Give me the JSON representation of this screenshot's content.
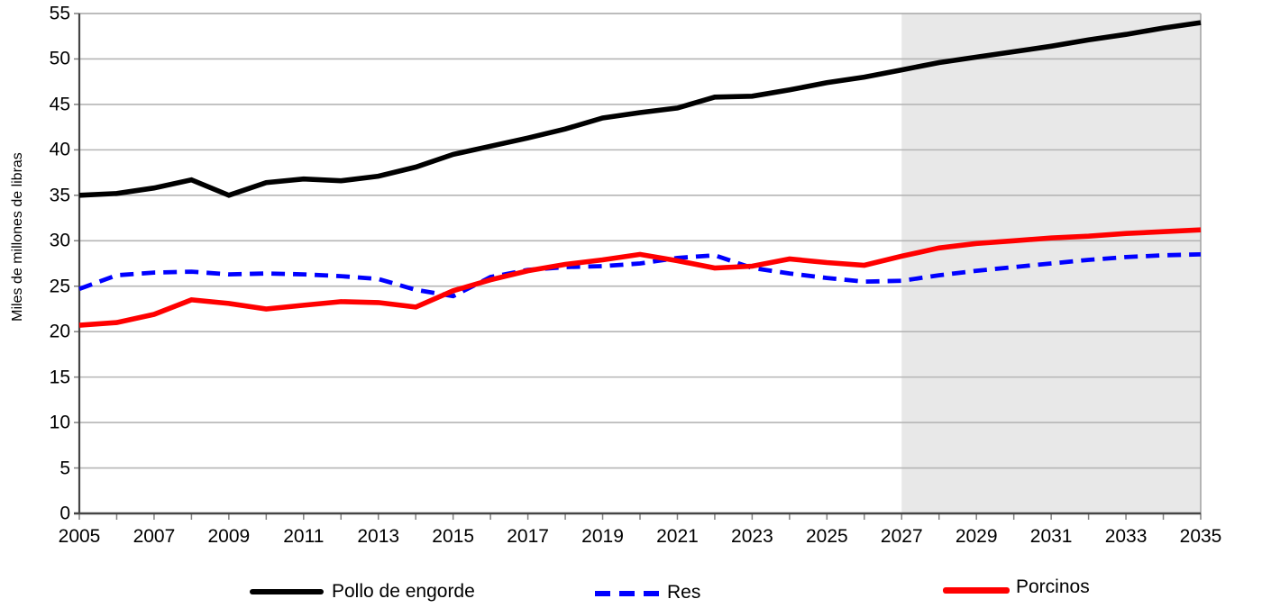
{
  "chart_data": {
    "type": "line",
    "title": "",
    "ylabel": "Miles de millones de libras",
    "xlabel": "",
    "ylim": [
      0,
      55
    ],
    "ytick_step": 5,
    "ytick_labels": [
      "0",
      "5",
      "10",
      "15",
      "20",
      "25",
      "30",
      "35",
      "40",
      "45",
      "50",
      "55"
    ],
    "x": [
      2005,
      2006,
      2007,
      2008,
      2009,
      2010,
      2011,
      2012,
      2013,
      2014,
      2015,
      2016,
      2017,
      2018,
      2019,
      2020,
      2021,
      2022,
      2023,
      2024,
      2025,
      2026,
      2027,
      2028,
      2029,
      2030,
      2031,
      2032,
      2033,
      2034,
      2035
    ],
    "xtick_labels": [
      "2005",
      "2007",
      "2009",
      "2011",
      "2013",
      "2015",
      "2017",
      "2019",
      "2021",
      "2023",
      "2025",
      "2027",
      "2029",
      "2031",
      "2033",
      "2035"
    ],
    "grid": "horizontal",
    "legend_position": "bottom",
    "projection_shading": {
      "x_start": 2027,
      "x_end": 2035,
      "color": "#E8E8E8"
    },
    "series": [
      {
        "name": "Pollo de engorde",
        "color": "#000000",
        "style": "solid",
        "values": [
          35.0,
          35.2,
          35.8,
          36.7,
          35.0,
          36.4,
          36.8,
          36.6,
          37.1,
          38.1,
          39.5,
          40.4,
          41.3,
          42.3,
          43.5,
          44.1,
          44.6,
          45.8,
          45.9,
          46.6,
          47.4,
          48.0,
          48.8,
          49.6,
          50.2,
          50.8,
          51.4,
          52.1,
          52.7,
          53.4,
          54.0
        ]
      },
      {
        "name": "Res",
        "color": "#0000FF",
        "style": "dashed",
        "values": [
          24.7,
          26.2,
          26.5,
          26.6,
          26.3,
          26.4,
          26.3,
          26.1,
          25.8,
          24.6,
          23.9,
          26.0,
          26.8,
          27.1,
          27.2,
          27.5,
          28.1,
          28.4,
          27.0,
          26.4,
          25.9,
          25.5,
          25.6,
          26.2,
          26.7,
          27.1,
          27.5,
          27.9,
          28.2,
          28.4,
          28.5
        ]
      },
      {
        "name": "Porcinos",
        "color": "#FF0000",
        "style": "solid",
        "values": [
          20.7,
          21.0,
          21.9,
          23.5,
          23.1,
          22.5,
          22.9,
          23.3,
          23.2,
          22.7,
          24.5,
          25.7,
          26.7,
          27.4,
          27.9,
          28.5,
          27.8,
          27.0,
          27.2,
          28.0,
          27.6,
          27.3,
          28.3,
          29.2,
          29.7,
          30.0,
          30.3,
          30.5,
          30.8,
          31.0,
          31.2
        ]
      }
    ],
    "colors": {
      "gridline": "#B5B5B5",
      "plot_border": "#A6A6A6",
      "axis": "#454545",
      "tick": "#7F7F7F",
      "background": "#FFFFFF"
    }
  }
}
